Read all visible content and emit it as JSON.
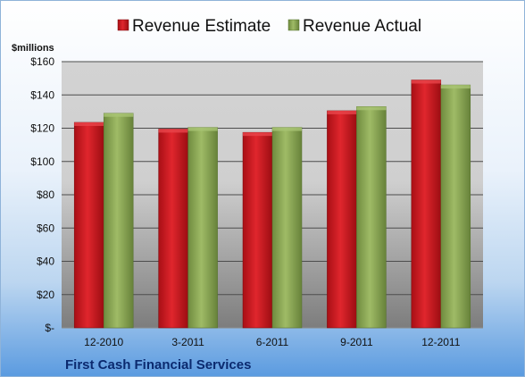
{
  "chart_data": {
    "type": "bar",
    "title": "",
    "unit_label": "$millions",
    "footer_title": "First Cash Financial Services",
    "categories": [
      "12-2010",
      "3-2011",
      "6-2011",
      "9-2011",
      "12-2011"
    ],
    "series": [
      {
        "name": "Revenue Estimate",
        "color": "#c8161d",
        "values": [
          123.5,
          119.5,
          117.5,
          130.5,
          149
        ]
      },
      {
        "name": "Revenue Actual",
        "color": "#8aa755",
        "values": [
          129,
          120.5,
          120.5,
          133,
          146
        ]
      }
    ],
    "ylim": [
      0,
      160
    ],
    "yticks": [
      0,
      20,
      40,
      60,
      80,
      100,
      120,
      140,
      160
    ],
    "ytick_labels": [
      "$-",
      "$20",
      "$40",
      "$60",
      "$80",
      "$100",
      "$120",
      "$140",
      "$160"
    ],
    "grid": true,
    "legend_position": "top-center"
  }
}
